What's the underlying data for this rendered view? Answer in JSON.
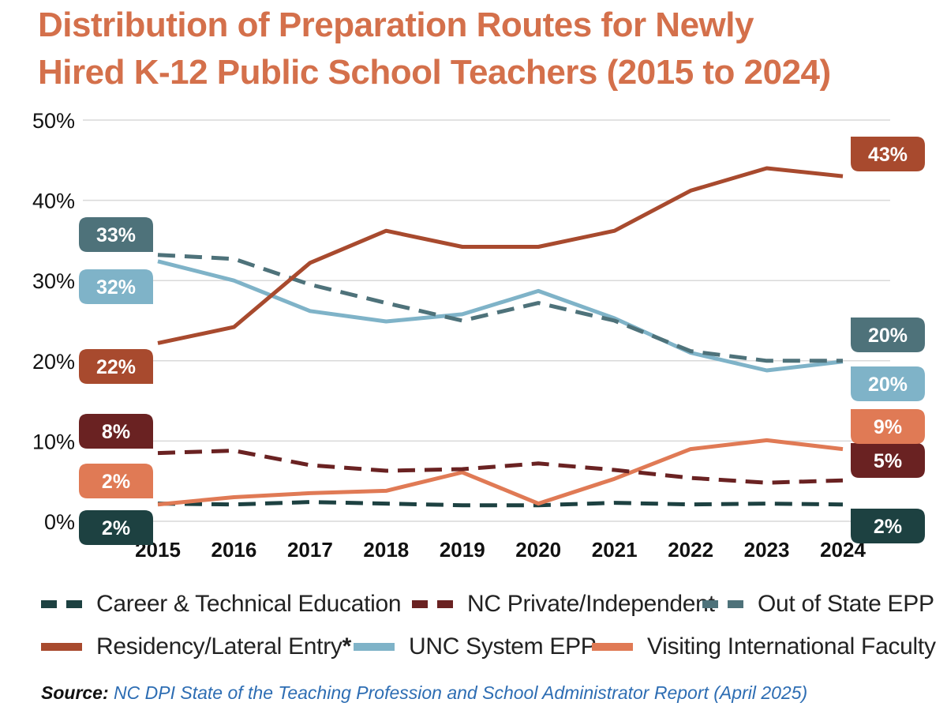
{
  "title_lines": [
    "Distribution of Preparation Routes for Newly",
    "Hired K-12 Public School Teachers (2015 to 2024)"
  ],
  "source": {
    "label": "Source:",
    "text": " NC DPI State of the Teaching Profession and School Administrator Report (April 2025)"
  },
  "colors": {
    "title": "#d4704b",
    "career_tech": "#1d4141",
    "nc_private": "#6a2222",
    "out_of_state": "#4e727a",
    "residency": "#a84a2e",
    "unc": "#7fb3c8",
    "visiting": "#e07a55",
    "grid": "#d9d9d9",
    "source_text": "#2d6db3"
  },
  "legend": [
    {
      "key": "career_tech",
      "label": "Career & Technical Education",
      "style": "dashed"
    },
    {
      "key": "nc_private",
      "label": "NC Private/Independent",
      "style": "dashed"
    },
    {
      "key": "out_of_state",
      "label": "Out of State EPP",
      "style": "dashed"
    },
    {
      "key": "residency",
      "label": "Residency/Lateral Entry",
      "style": "solid",
      "mark": "*"
    },
    {
      "key": "unc",
      "label": "UNC System EPP",
      "style": "solid"
    },
    {
      "key": "visiting",
      "label": "Visiting International Faculty",
      "style": "solid"
    }
  ],
  "chart_data": {
    "type": "line",
    "title": "Distribution of Preparation Routes for Newly Hired K-12 Public School Teachers (2015 to 2024)",
    "x": [
      "2015",
      "2016",
      "2017",
      "2018",
      "2019",
      "2020",
      "2021",
      "2022",
      "2023",
      "2024"
    ],
    "ylim": [
      0,
      50
    ],
    "yticks": [
      0,
      10,
      20,
      30,
      40,
      50
    ],
    "ytick_labels": [
      "0%",
      "10%",
      "20%",
      "30%",
      "40%",
      "50%"
    ],
    "grid": true,
    "legend_position": "bottom",
    "series": [
      {
        "name": "Career & Technical Education",
        "key": "career_tech",
        "style": "dashed",
        "values": [
          2.2,
          2.1,
          2.4,
          2.2,
          2.0,
          2.0,
          2.3,
          2.1,
          2.2,
          2.1
        ],
        "start_label": "2%",
        "end_label": "2%"
      },
      {
        "name": "NC Private/Independent",
        "key": "nc_private",
        "style": "dashed",
        "values": [
          8.5,
          8.8,
          7.0,
          6.3,
          6.5,
          7.2,
          6.4,
          5.4,
          4.8,
          5.1
        ],
        "start_label": "8%",
        "end_label": "5%"
      },
      {
        "name": "Out of State EPP",
        "key": "out_of_state",
        "style": "dashed",
        "values": [
          33.2,
          32.7,
          29.5,
          27.2,
          25.0,
          27.2,
          25.0,
          21.2,
          20.0,
          20.0
        ],
        "start_label": "33%",
        "end_label": "20%"
      },
      {
        "name": "Residency/Lateral Entry*",
        "key": "residency",
        "style": "solid",
        "values": [
          22.2,
          24.2,
          32.2,
          36.2,
          34.2,
          34.2,
          36.2,
          41.2,
          44.0,
          43.0
        ],
        "start_label": "22%",
        "end_label": "43%"
      },
      {
        "name": "UNC System EPP",
        "key": "unc",
        "style": "solid",
        "values": [
          32.4,
          30.0,
          26.2,
          24.9,
          25.8,
          28.7,
          25.3,
          21.0,
          18.8,
          19.9
        ],
        "start_label": "32%",
        "end_label": "20%"
      },
      {
        "name": "Visiting International Faculty",
        "key": "visiting",
        "style": "solid",
        "values": [
          2.1,
          3.0,
          3.5,
          3.8,
          6.1,
          2.2,
          5.3,
          9.0,
          10.1,
          9.0
        ],
        "start_label": "2%",
        "end_label": "9%"
      }
    ]
  }
}
